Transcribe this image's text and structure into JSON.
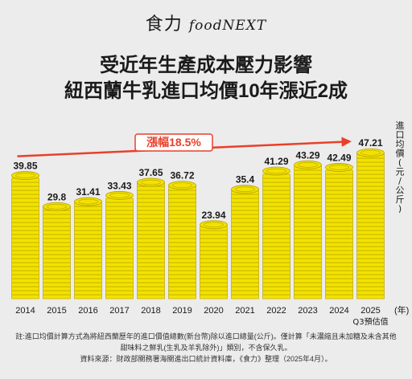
{
  "brand": {
    "name_cn": "食力",
    "name_en": "foodNEXT"
  },
  "title": {
    "line1": "受近年生產成本壓力影響",
    "line2": "紐西蘭牛乳進口均價10年漲近2成"
  },
  "chart_data": {
    "type": "bar",
    "categories": [
      "2014",
      "2015",
      "2016",
      "2017",
      "2018",
      "2019",
      "2020",
      "2021",
      "2022",
      "2023",
      "2024",
      "2025"
    ],
    "values": [
      39.85,
      29.8,
      31.41,
      33.43,
      37.65,
      36.72,
      23.94,
      35.4,
      41.29,
      43.29,
      42.49,
      47.21
    ],
    "ylabel": "進口均價(元/公斤)",
    "xunit": "(年)",
    "category_sublabel": {
      "2025": "Q3預估值"
    },
    "annotation": "漲幅18.5%",
    "ylim": [
      0,
      50
    ],
    "colors": {
      "coin": "#f2e200",
      "coin_edge": "#b59e00",
      "arrow": "#e8402a",
      "annotation": "#e8402a"
    }
  },
  "notes": {
    "line1": "註:進口均價計算方式為將紐西蘭歷年的進口價值總數(新台幣)除以進口總量(公斤)。僅計算「未濃縮且未加糖及未含其他",
    "line2": "甜味料之鮮乳(生乳及羊乳除外)」類別，不含保久乳。",
    "line3": "資料來源：財政部關務署海關進出口統計資料庫，《食力》整理（2025年4月）。"
  }
}
